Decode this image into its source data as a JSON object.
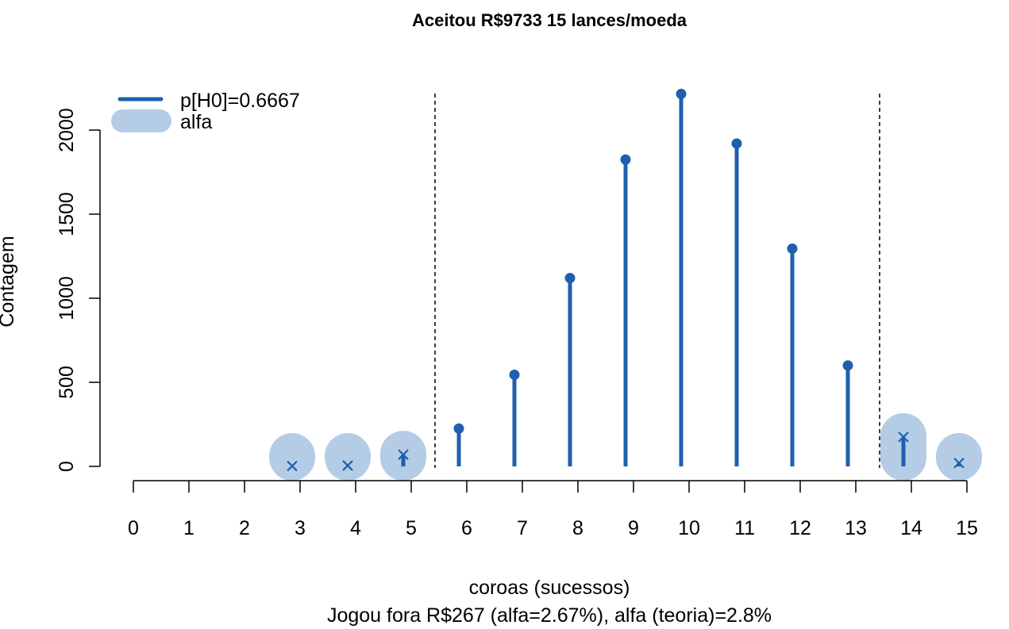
{
  "chart_data": {
    "type": "lollipop",
    "title": "Aceitou R$9733 15 lances/moeda",
    "xlabel": "coroas (sucessos)",
    "subtitle": "Jogou fora R$267 (alfa=2.67%), alfa (teoria)=2.8%",
    "ylabel": "Contagem",
    "x_ticks": [
      "0",
      "1",
      "2",
      "3",
      "4",
      "5",
      "6",
      "7",
      "8",
      "9",
      "10",
      "11",
      "12",
      "13",
      "14",
      "15"
    ],
    "y_ticks": [
      "0",
      "500",
      "1000",
      "1500",
      "2000"
    ],
    "xlim": [
      0,
      15
    ],
    "ylim": [
      0,
      2200
    ],
    "grid": false,
    "legend": {
      "position": "top-left",
      "entries": [
        {
          "label": "p[H0]=0.6667",
          "style": "line",
          "color": "#1f5fae"
        },
        {
          "label": "alfa",
          "style": "band",
          "color": "#b4cce6"
        }
      ]
    },
    "series": [
      {
        "name": "p[H0]=0.6667",
        "color": "#1f5fae",
        "x": [
          3,
          4,
          5,
          6,
          7,
          8,
          9,
          10,
          11,
          12,
          13,
          14,
          15
        ],
        "values": [
          2,
          5,
          70,
          225,
          545,
          1120,
          1825,
          2215,
          1920,
          1295,
          600,
          175,
          20
        ]
      },
      {
        "name": "alfa",
        "color": "#b4cce6",
        "x": [
          3,
          4,
          5,
          14,
          15
        ],
        "values": [
          2,
          5,
          70,
          175,
          20
        ]
      }
    ],
    "reference_lines": {
      "style": "dashed",
      "x": [
        5.5,
        13.5
      ]
    }
  }
}
